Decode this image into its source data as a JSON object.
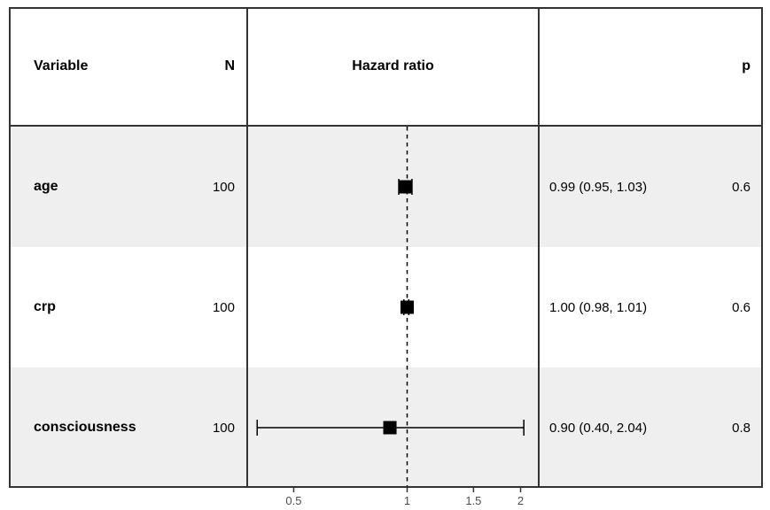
{
  "table": {
    "headers": {
      "variable": "Variable",
      "n": "N",
      "hazard_ratio": "Hazard ratio",
      "p": "p"
    }
  },
  "chart_data": {
    "type": "scatter",
    "subtype": "forest-plot",
    "title": "Hazard ratio",
    "x_scale": "log",
    "x_ticks": [
      0.5,
      1,
      1.5,
      2
    ],
    "x_tick_labels": [
      "0.5",
      "1",
      "1.5",
      "2"
    ],
    "reference_line_x": 1,
    "xlim": [
      0.35,
      2.2
    ],
    "categories": [
      "age",
      "crp",
      "consciousness"
    ],
    "n": [
      100,
      100,
      100
    ],
    "series": [
      {
        "name": "hazard_ratio",
        "values": [
          0.99,
          1.0,
          0.9
        ]
      },
      {
        "name": "ci_lower",
        "values": [
          0.95,
          0.98,
          0.4
        ]
      },
      {
        "name": "ci_upper",
        "values": [
          1.03,
          1.01,
          2.04
        ]
      }
    ],
    "estimate_labels": [
      "0.99 (0.95, 1.03)",
      "1.00 (0.98, 1.01)",
      "0.90 (0.40, 2.04)"
    ],
    "p_values": [
      "0.6",
      "0.6",
      "0.8"
    ]
  },
  "colors": {
    "stripe": "#EFEFEF",
    "border": "#333333",
    "marker": "#000000",
    "axis_text": "#4D4D4D",
    "background": "#FFFFFF"
  }
}
